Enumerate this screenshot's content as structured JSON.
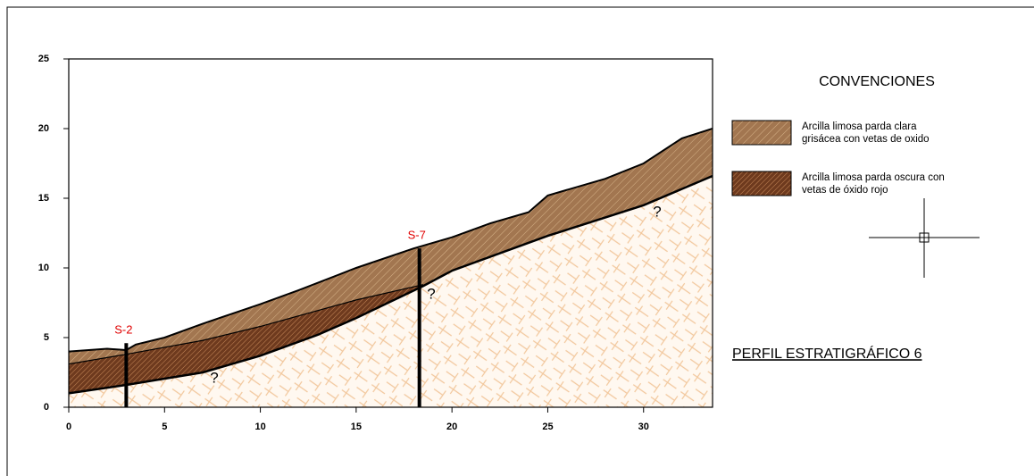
{
  "chart_data": {
    "type": "profile",
    "xlim": [
      0,
      33.6
    ],
    "ylim": [
      0,
      25
    ],
    "xticks": [
      0,
      5,
      10,
      15,
      20,
      25,
      30
    ],
    "yticks": [
      0,
      5,
      10,
      15,
      20,
      25
    ],
    "lines": [
      {
        "x": [
          0,
          2,
          3,
          3.5,
          5,
          7,
          10,
          12,
          15,
          18,
          20,
          22,
          24,
          25,
          28,
          30,
          32,
          33.6
        ],
        "values": [
          4.0,
          4.2,
          4.1,
          4.5,
          5.0,
          6.0,
          7.4,
          8.4,
          10.0,
          11.4,
          12.2,
          13.2,
          14.0,
          15.2,
          16.4,
          17.5,
          19.3,
          20.0
        ]
      },
      {
        "x": [
          0,
          3,
          7,
          10,
          15,
          18.5
        ],
        "values": [
          3.1,
          3.8,
          4.8,
          5.8,
          7.7,
          8.8
        ]
      },
      {
        "x": [
          0,
          3,
          7,
          10,
          13,
          15,
          18.5,
          20,
          25,
          30,
          33.6
        ],
        "values": [
          1.0,
          1.6,
          2.5,
          3.7,
          5.2,
          6.4,
          8.7,
          9.8,
          12.3,
          14.5,
          16.6
        ]
      }
    ],
    "legend_title": "CONVENCIONES",
    "series": [
      {
        "name": [
          "Arcilla limosa parda clara",
          "grisácea con vetas  de oxido"
        ],
        "color": "#9c6d45"
      },
      {
        "name": [
          "Arcilla limosa parda oscura con",
          "vetas  de óxido rojo"
        ],
        "color": "#6e3a1e"
      }
    ],
    "boreholes": [
      {
        "label": "S-2",
        "x": 3,
        "top": 4.6,
        "bottom": 0
      },
      {
        "label": "S-7",
        "x": 18.3,
        "top": 11.4,
        "bottom": 0
      }
    ],
    "annotations": [
      "?",
      "?",
      "?"
    ],
    "title": "PERFIL ESTRATIGRÁFICO 6"
  }
}
